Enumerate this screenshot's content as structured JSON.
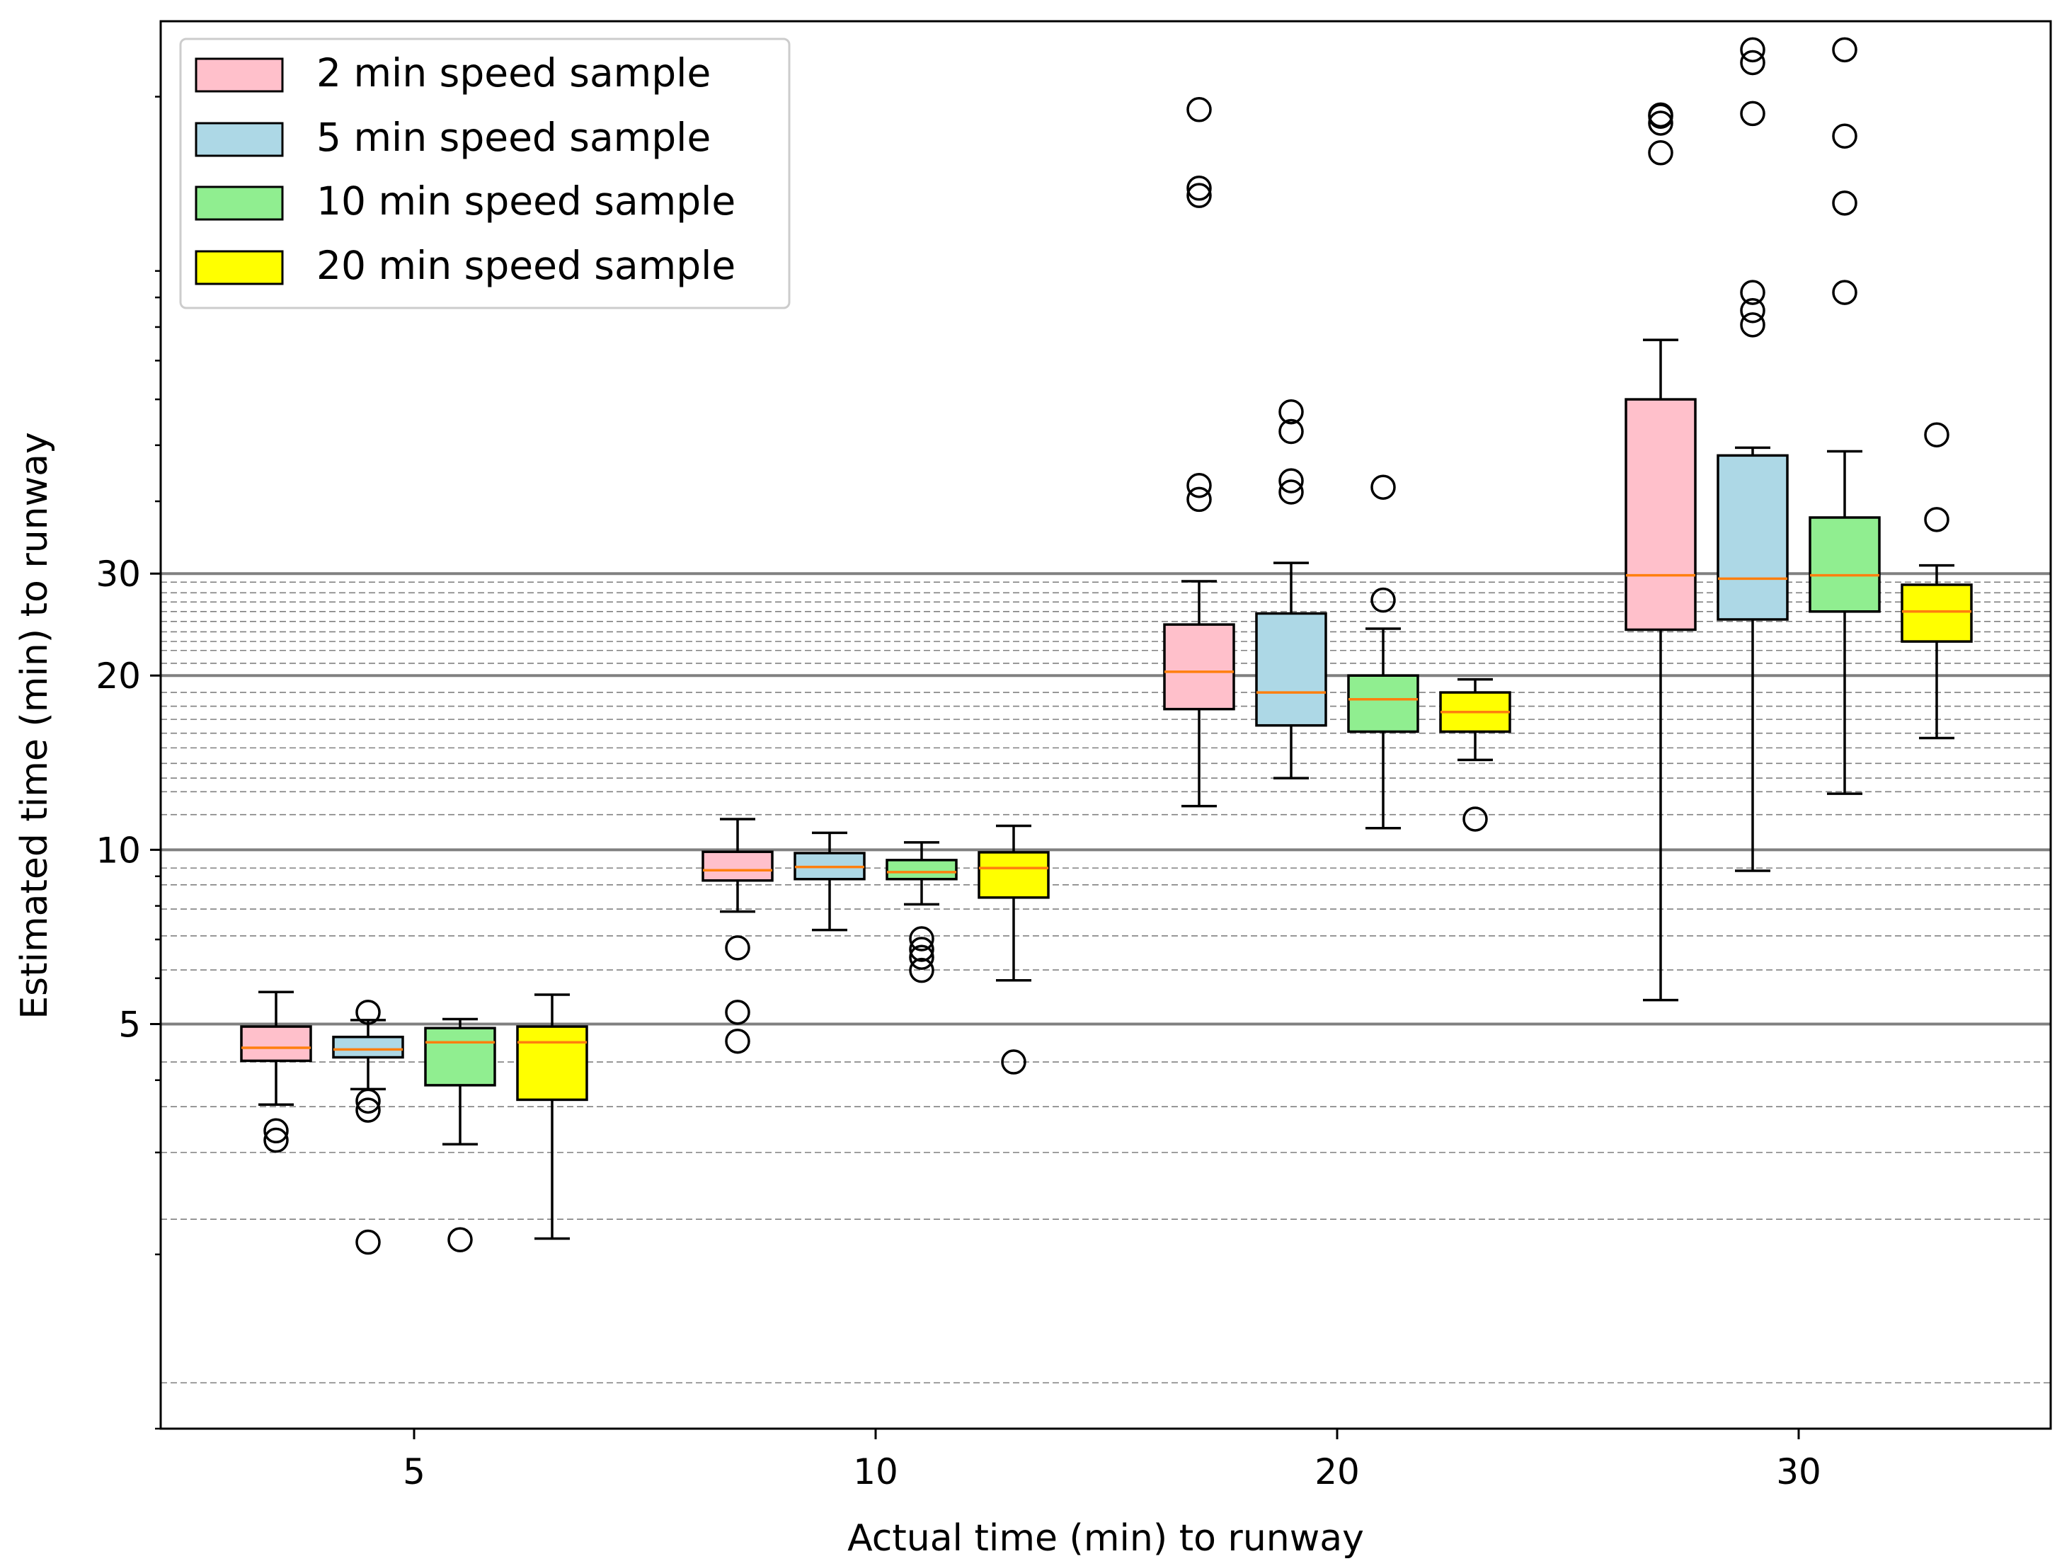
{
  "chart_data": {
    "type": "box",
    "xlabel": "Actual time (min) to runway",
    "ylabel": "Estimated time (min) to runway",
    "yscale": "log",
    "ylim": [
      1.0,
      270
    ],
    "categories": [
      "5",
      "10",
      "20",
      "30"
    ],
    "yticks": [
      {
        "value": 5,
        "label": "5"
      },
      {
        "value": 10,
        "label": "10"
      },
      {
        "value": 20,
        "label": "20"
      },
      {
        "value": 30,
        "label": "30"
      }
    ],
    "major_gridlines": [
      5,
      10,
      20,
      30
    ],
    "minor_gridlines": [
      1.2,
      2.3,
      3.0,
      3.6,
      4.3,
      6.2,
      7.1,
      7.9,
      8.7,
      9.3,
      11.5,
      12.6,
      13.3,
      14.1,
      15.0,
      15.9,
      16.8,
      17.7,
      18.7,
      21.0,
      22.1,
      22.9,
      23.8,
      24.8,
      25.8,
      26.8,
      27.8,
      29.0
    ],
    "legend": {
      "position": "top-left",
      "entries": [
        {
          "label": "2 min speed sample",
          "color": "#ffc0cb"
        },
        {
          "label": "5 min speed sample",
          "color": "#add8e6"
        },
        {
          "label": "10 min speed sample",
          "color": "#90ee90"
        },
        {
          "label": "20 min speed sample",
          "color": "#ffff00"
        }
      ]
    },
    "series": [
      {
        "name": "2 min speed sample",
        "color": "#ffc0cb",
        "boxes": [
          {
            "whislo": 3.63,
            "q1": 4.32,
            "med": 4.55,
            "q3": 4.95,
            "whishi": 5.68,
            "fliers": [
              3.27,
              3.15
            ]
          },
          {
            "whislo": 7.82,
            "q1": 8.85,
            "med": 9.22,
            "q3": 9.92,
            "whishi": 11.3,
            "fliers": [
              6.77,
              5.24,
              4.67
            ]
          },
          {
            "whislo": 11.9,
            "q1": 17.5,
            "med": 20.3,
            "q3": 24.5,
            "whishi": 29.1,
            "fliers": [
              40.3,
              42.6,
              135,
              139,
              190
            ]
          },
          {
            "whislo": 5.5,
            "q1": 24.0,
            "med": 29.8,
            "q3": 60.0,
            "whishi": 76.0,
            "fliers": [
              160,
              180,
              185,
              186
            ]
          }
        ]
      },
      {
        "name": "5 min speed sample",
        "color": "#add8e6",
        "boxes": [
          {
            "whislo": 3.86,
            "q1": 4.38,
            "med": 4.52,
            "q3": 4.75,
            "whishi": 5.08,
            "fliers": [
              5.24,
              3.68,
              3.55,
              2.1
            ]
          },
          {
            "whislo": 7.27,
            "q1": 8.9,
            "med": 9.34,
            "q3": 9.87,
            "whishi": 10.7,
            "fliers": []
          },
          {
            "whislo": 13.3,
            "q1": 16.4,
            "med": 18.7,
            "q3": 25.6,
            "whishi": 31.3,
            "fliers": [
              41.5,
              43.4,
              52.8,
              57.1
            ]
          },
          {
            "whislo": 9.2,
            "q1": 25.0,
            "med": 29.4,
            "q3": 48.0,
            "whishi": 49.5,
            "fliers": [
              80.7,
              85.4,
              91.8,
              187,
              229,
              241
            ]
          }
        ]
      },
      {
        "name": "10 min speed sample",
        "color": "#90ee90",
        "boxes": [
          {
            "whislo": 3.1,
            "q1": 3.92,
            "med": 4.65,
            "q3": 4.92,
            "whishi": 5.1,
            "fliers": [
              2.12
            ]
          },
          {
            "whislo": 8.05,
            "q1": 8.9,
            "med": 9.15,
            "q3": 9.6,
            "whishi": 10.3,
            "fliers": [
              7.02,
              6.73,
              6.52,
              6.19
            ]
          },
          {
            "whislo": 10.9,
            "q1": 16.0,
            "med": 18.2,
            "q3": 20.0,
            "whishi": 24.1,
            "fliers": [
              27.0,
              42.3
            ]
          },
          {
            "whislo": 12.5,
            "q1": 25.8,
            "med": 29.8,
            "q3": 37.5,
            "whishi": 48.8,
            "fliers": [
              91.8,
              131,
              171,
              241
            ]
          }
        ]
      },
      {
        "name": "20 min speed sample",
        "color": "#ffff00",
        "boxes": [
          {
            "whislo": 2.13,
            "q1": 3.7,
            "med": 4.65,
            "q3": 4.95,
            "whishi": 5.62,
            "fliers": []
          },
          {
            "whislo": 5.95,
            "q1": 8.27,
            "med": 9.3,
            "q3": 9.9,
            "whishi": 11.0,
            "fliers": [
              4.3
            ]
          },
          {
            "whislo": 14.3,
            "q1": 16.0,
            "med": 17.3,
            "q3": 18.7,
            "whishi": 19.7,
            "fliers": [
              11.3
            ]
          },
          {
            "whislo": 15.6,
            "q1": 22.9,
            "med": 25.8,
            "q3": 28.7,
            "whishi": 31.0,
            "fliers": [
              37.2,
              52.1
            ]
          }
        ]
      }
    ]
  }
}
